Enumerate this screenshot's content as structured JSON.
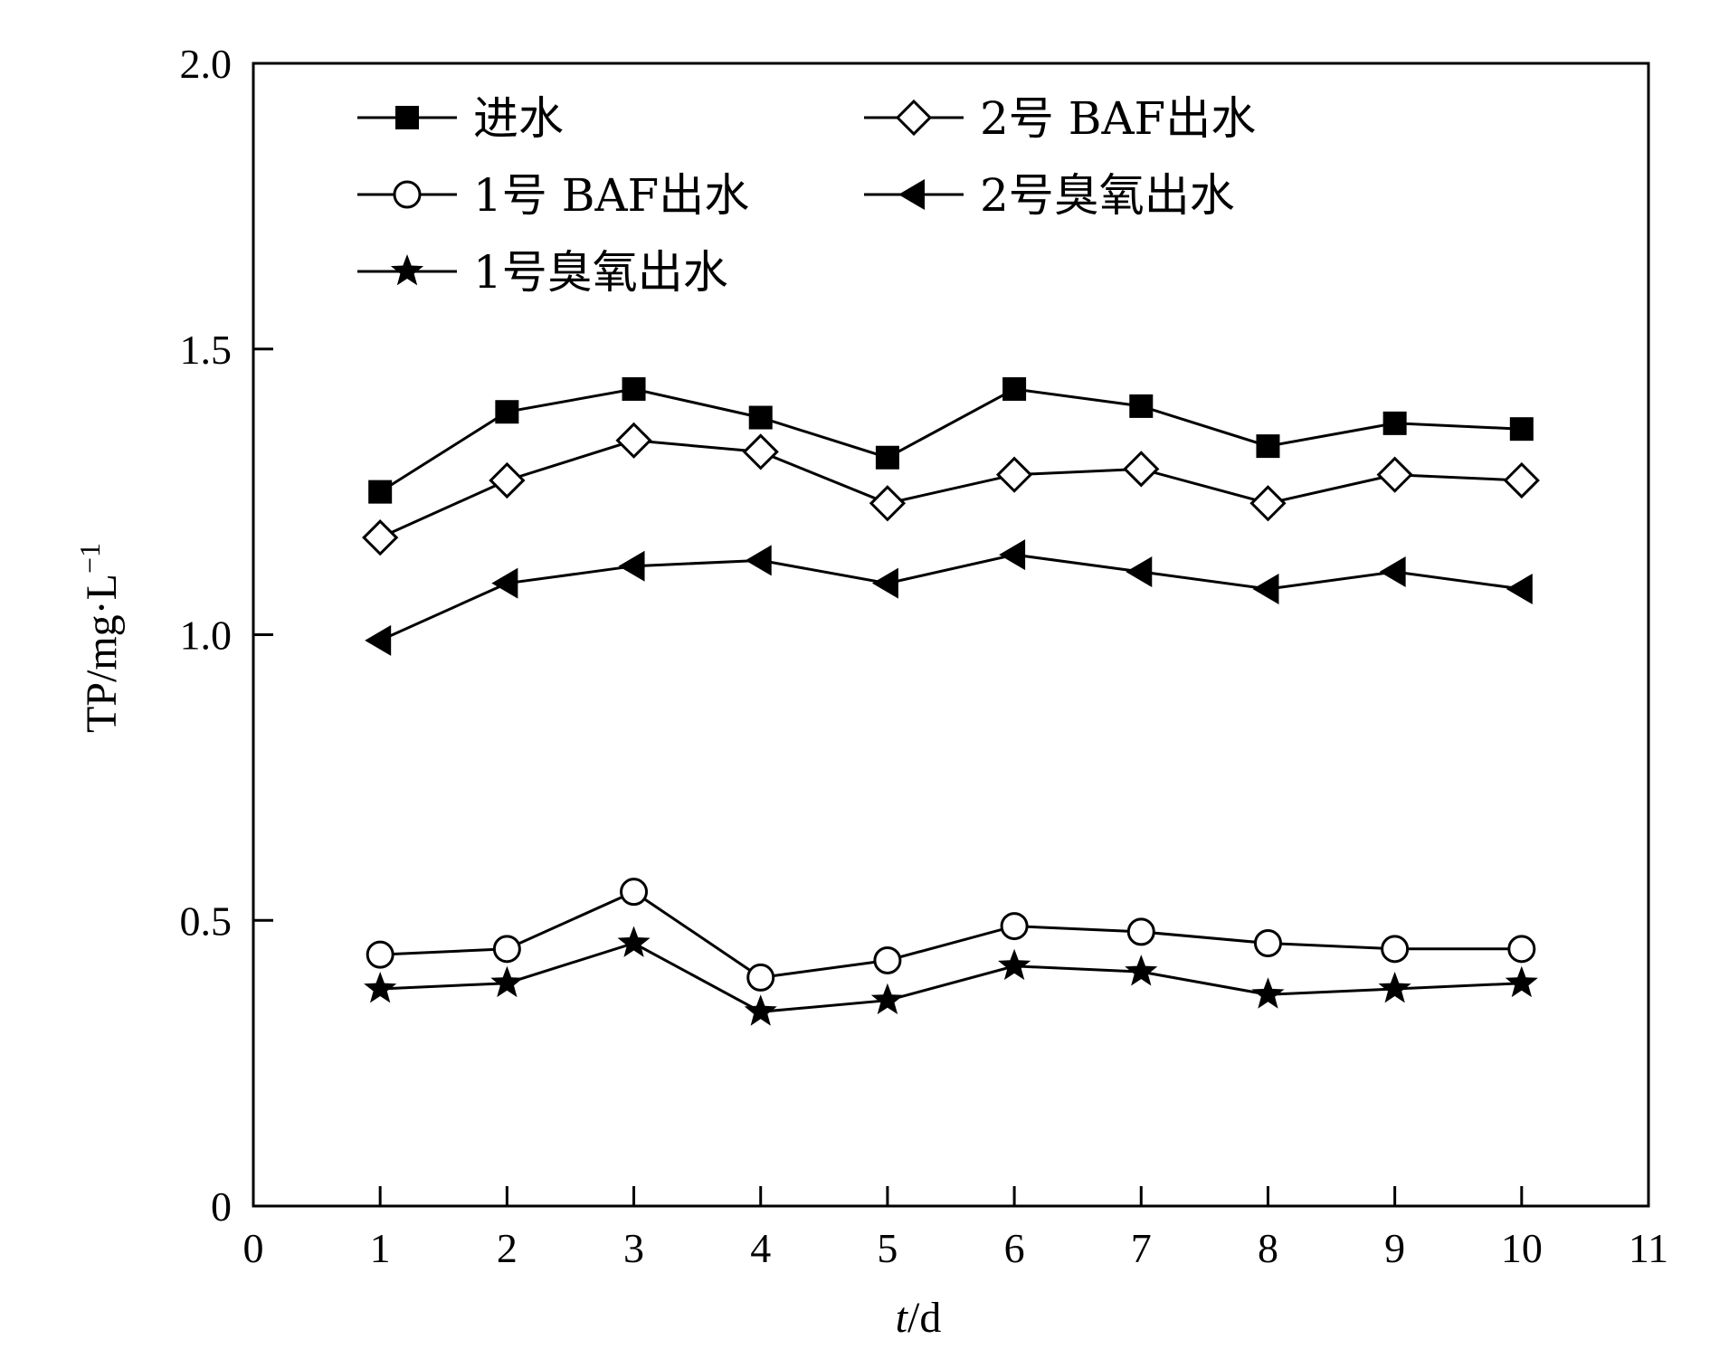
{
  "chart_data": {
    "type": "line",
    "xlabel": "t/d",
    "xlabel_italic_part": "t",
    "xlabel_rest": "/d",
    "ylabel": "TP/mg·L",
    "ylabel_sup": "−1",
    "xlim": [
      0,
      11
    ],
    "ylim": [
      0,
      2.0
    ],
    "xticks": [
      0,
      1,
      2,
      3,
      4,
      5,
      6,
      7,
      8,
      9,
      10,
      11
    ],
    "xtick_labels": [
      "0",
      "1",
      "2",
      "3",
      "4",
      "5",
      "6",
      "7",
      "8",
      "9",
      "10",
      "11"
    ],
    "yticks": [
      0,
      0.5,
      1.0,
      1.5,
      2.0
    ],
    "ytick_labels": [
      "0",
      "0.5",
      "1.0",
      "1.5",
      "2.0"
    ],
    "grid": false,
    "legend_position": "top-left",
    "x": [
      1,
      2,
      3,
      4,
      5,
      6,
      7,
      8,
      9,
      10
    ],
    "series": [
      {
        "name": "进水",
        "marker": "filled-square",
        "values": [
          1.25,
          1.39,
          1.43,
          1.38,
          1.31,
          1.43,
          1.4,
          1.33,
          1.37,
          1.36
        ]
      },
      {
        "name": "2号 BAF出水",
        "marker": "open-diamond",
        "values": [
          1.17,
          1.27,
          1.34,
          1.32,
          1.23,
          1.28,
          1.29,
          1.23,
          1.28,
          1.27
        ]
      },
      {
        "name": "1号 BAF出水",
        "marker": "open-circle",
        "values": [
          0.44,
          0.45,
          0.55,
          0.4,
          0.43,
          0.49,
          0.48,
          0.46,
          0.45,
          0.45
        ]
      },
      {
        "name": "2号臭氧出水",
        "marker": "filled-left-triangle",
        "values": [
          0.99,
          1.09,
          1.12,
          1.13,
          1.09,
          1.14,
          1.11,
          1.08,
          1.11,
          1.08
        ]
      },
      {
        "name": "1号臭氧出水",
        "marker": "filled-star",
        "values": [
          0.38,
          0.39,
          0.46,
          0.34,
          0.36,
          0.42,
          0.41,
          0.37,
          0.38,
          0.39
        ]
      }
    ],
    "colors": {
      "line": "#000000",
      "marker_fill": "#000000",
      "background": "#ffffff"
    }
  }
}
